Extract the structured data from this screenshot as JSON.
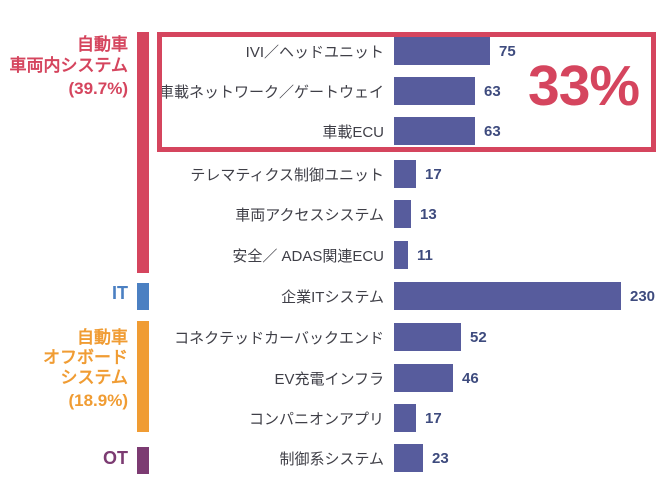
{
  "colors": {
    "crimson": "#D5455E",
    "bar": "#575C9D",
    "valueText": "#3E4B7E",
    "labelText": "#3F3F47",
    "blue": "#4B80C2",
    "orange": "#F09C33",
    "purple": "#7C3B72"
  },
  "chart_data": {
    "type": "bar",
    "orientation": "horizontal",
    "rows": [
      {
        "label": "IVI／ヘッドユニット",
        "value": 75
      },
      {
        "label": "車載ネットワーク／ゲートウェイ",
        "value": 63
      },
      {
        "label": "車載ECU",
        "value": 63
      },
      {
        "label": "テレマティクス制御ユニット",
        "value": 17
      },
      {
        "label": "車両アクセスシステム",
        "value": 13
      },
      {
        "label": "安全／ ADAS関連ECU",
        "value": 11
      },
      {
        "label": "企業ITシステム",
        "value": 230
      },
      {
        "label": "コネクテッドカーバックエンド",
        "value": 52
      },
      {
        "label": "EV充電インフラ",
        "value": 46
      },
      {
        "label": "コンパニオンアプリ",
        "value": 17
      },
      {
        "label": "制御系システム",
        "value": 23
      }
    ],
    "groups": [
      {
        "label_lines": [
          "自動車",
          "車両内システム"
        ],
        "percent": "(39.7%)",
        "color": "#D5455E",
        "row_start": 0,
        "row_end": 5
      },
      {
        "label_lines": [
          "IT"
        ],
        "color": "#4B80C2",
        "row_start": 6,
        "row_end": 6
      },
      {
        "label_lines": [
          "自動車",
          "オフボード",
          "システム"
        ],
        "percent": "(18.9%)",
        "color": "#F09C33",
        "row_start": 7,
        "row_end": 9
      },
      {
        "label_lines": [
          "OT"
        ],
        "color": "#7C3B72",
        "row_start": 10,
        "row_end": 10
      }
    ],
    "annotation": {
      "text": "33%",
      "color": "#D5455E",
      "applies_to_rows": [
        0,
        1,
        2
      ]
    },
    "legend_position": "none",
    "grid": false
  }
}
